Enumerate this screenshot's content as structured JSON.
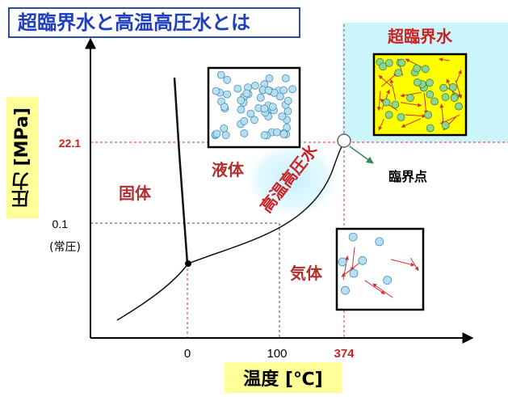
{
  "title": "超臨界水と高温高圧水とは",
  "axes": {
    "y_label": "圧力 [MPa]",
    "x_label": "温度 [℃]",
    "y_ticks": {
      "critical_pressure": "22.1",
      "atmospheric": "0.1",
      "atmospheric_note": "(常圧)"
    },
    "x_ticks": {
      "zero": "0",
      "hundred": "100",
      "critical_temp": "374"
    }
  },
  "regions": {
    "supercritical": "超臨界水",
    "liquid": "液体",
    "solid": "固体",
    "gas": "気体",
    "high_temp_pressure": "高温高圧水",
    "critical_point": "臨界点"
  },
  "colors": {
    "title_text": "#1f3fbf",
    "accent_red": "#cc2222",
    "region_label": "#b03030",
    "label_bg": "#ffff99",
    "supercritical_bg": "#ccf4fb",
    "box_yellow": "#ffff00",
    "molecule_blue": "#b8dff0",
    "molecule_green": "#8fd48f",
    "arrow_green": "#2e8b57"
  }
}
